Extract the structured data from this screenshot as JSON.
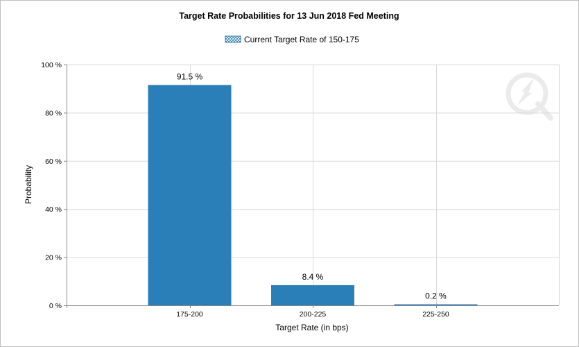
{
  "colors": {
    "bar": "#2b7fb8",
    "grid": "#d9d9d9",
    "axis": "#888888"
  },
  "watermark": {
    "icon": "logo-watermark-icon"
  },
  "chart_data": {
    "type": "bar",
    "title": "Target Rate Probabilities for 13 Jun 2018 Fed Meeting",
    "legend": {
      "label": "Current Target Rate of 150-175",
      "position": "top-center"
    },
    "xlabel": "Target Rate (in bps)",
    "ylabel": "Probability",
    "categories": [
      "175-200",
      "200-225",
      "225-250"
    ],
    "values": [
      91.5,
      8.4,
      0.2
    ],
    "data_labels": [
      "91.5 %",
      "8.4 %",
      "0.2 %"
    ],
    "ylim": [
      0,
      100
    ],
    "yticks": [
      0,
      20,
      40,
      60,
      80,
      100
    ],
    "ytick_labels": [
      "0 %",
      "20 %",
      "40 %",
      "60 %",
      "80 %",
      "100 %"
    ],
    "grid": true
  }
}
